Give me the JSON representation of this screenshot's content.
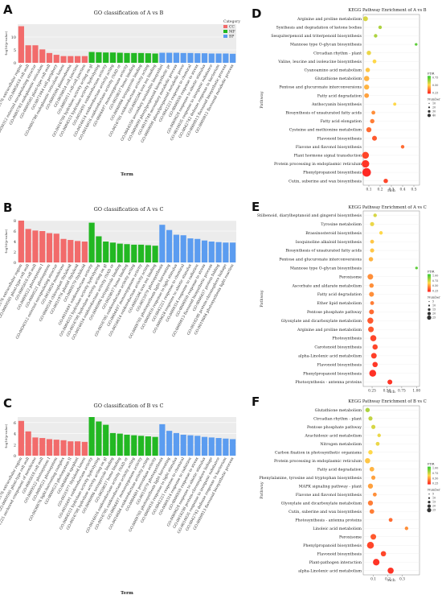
{
  "panels": {
    "A": {
      "letter": "A"
    },
    "B": {
      "letter": "B"
    },
    "C": {
      "letter": "C"
    },
    "D": {
      "letter": "D"
    },
    "E": {
      "letter": "E"
    },
    "F": {
      "letter": "F"
    }
  },
  "colors": {
    "CC": "#f26b6b",
    "MF": "#22b822",
    "BP": "#5b9cf0",
    "panel_bg": "#ececec",
    "kegg_low": "#ff2222",
    "kegg_mid": "#ffd84a",
    "kegg_high": "#33cc33"
  },
  "chart_data": [
    {
      "type": "bar",
      "panel": "A",
      "title": "GO classification of A vs B",
      "xlabel": "Term",
      "ylabel": "-log10(p-value)",
      "ylim": [
        0,
        15
      ],
      "yticks": [
        0,
        5,
        10
      ],
      "legend": {
        "title": "Category",
        "entries": [
          "CC",
          "MF",
          "BP"
        ],
        "placement": "top-right"
      },
      "categories": [
        "GO:0005576 extracellular region",
        "GO:0005618 cell wall",
        "GO:0030312 external encapsulating structure",
        "GO:0005783 endoplasmic reticulum",
        "GO:0009505 plant-type cell wall",
        "GO:0071944 cell periphery",
        "GO:0005788 endoplasmic reticulum lumen",
        "GO:0009506 plasmodesma",
        "GO:0030054 cell junction",
        "GO:0005911 cell-cell junction",
        "GO:0016798 hydrolase activity acting on glycosyl bonds",
        "GO:0004553 hydrolase activity hydrolyzing O-glycosyl compounds",
        "GO:0016491 oxidoreductase activity",
        "GO:0016614 oxidoreductase activity acting on CH-OH group of donors",
        "GO:0016616 oxidoreductase activity (NAD or NADP as acceptor)",
        "GO:0004497 monooxygenase activity",
        "GO:0020037 heme binding",
        "GO:0046906 tetrapyrrole binding",
        "GO:0016705 oxidoreductase activity acting on paired donors",
        "GO:0005506 iron ion binding",
        "GO:0044550 secondary metabolite biosynthetic process",
        "GO:0009699 phenylpropanoid biosynthetic process",
        "GO:0019748 secondary metabolic process",
        "GO:0009698 phenylpropanoid metabolic process",
        "GO:0042221 response to chemical",
        "GO:0006950 response to stress",
        "GO:0009628 response to abiotic stimulus",
        "GO:0010035 response to inorganic substance",
        "GO:0042742 defense response to bacterium",
        "GO:0009813 flavonoid biosynthetic process",
        "GO:0009812 flavonoid metabolic process"
      ],
      "values": [
        14.2,
        6.8,
        6.8,
        5.2,
        3.8,
        3.1,
        2.6,
        2.6,
        2.6,
        2.6,
        4.2,
        4.1,
        4.0,
        4.0,
        3.9,
        3.8,
        3.8,
        3.8,
        3.7,
        3.6,
        3.9,
        3.9,
        3.9,
        3.8,
        3.8,
        3.7,
        3.7,
        3.6,
        3.6,
        3.6,
        3.5
      ],
      "category_groups": [
        [
          "CC",
          10
        ],
        [
          "MF",
          10
        ],
        [
          "BP",
          11
        ]
      ]
    },
    {
      "type": "bar",
      "panel": "B",
      "title": "GO classification of A vs C",
      "xlabel": "",
      "ylabel": "-log10(p-value)",
      "ylim": [
        0,
        8
      ],
      "yticks": [
        0,
        2,
        4,
        6,
        8
      ],
      "categories": [
        "GO:0005576 extracellular region",
        "GO:0009505 plant-type cell wall",
        "GO:0005618 cell wall",
        "GO:0009522 photosystem I",
        "GO:0009521 photosystem",
        "GO:0030312 external encapsulating structure",
        "GO:0016020 membrane",
        "GO:0009534 chloroplast thylakoid",
        "GO:0031976 plastid thylakoid",
        "GO:0009579 thylakoid",
        "GO:0016491 oxidoreductase activity",
        "GO:0004553 hydrolase activity hydrolyzing O-glycosyl compounds",
        "GO:0016798 hydrolase activity acting on glycosyl bonds",
        "GO:0016616 oxidoreductase activity (NAD or NADP as acceptor)",
        "GO:0046906 tetrapyrrole binding",
        "GO:0020037 heme binding",
        "GO:0016705 oxidoreductase activity acting on paired donors",
        "GO:0004497 monooxygenase activity",
        "GO:0016614 oxidoreductase activity acting on CH-OH group",
        "GO:0005506 iron ion binding",
        "GO:0015979 photosynthesis",
        "GO:0009765 photosynthesis light harvesting",
        "GO:0009416 response to light stimulus",
        "GO:0042221 response to chemical",
        "GO:0009628 response to abiotic stimulus",
        "GO:0009314 response to radiation",
        "GO:0006950 response to stress",
        "GO:0009813 flavonoid biosynthetic process",
        "GO:0006457 protein folding",
        "GO:0018298 protein-chromophore linkage",
        "GO:0019684 photosynthesis light reaction"
      ],
      "values": [
        8.0,
        6.4,
        6.1,
        6.0,
        5.6,
        5.5,
        4.5,
        4.3,
        4.1,
        4.0,
        7.6,
        5.0,
        4.0,
        3.8,
        3.6,
        3.5,
        3.4,
        3.4,
        3.3,
        3.2,
        7.2,
        6.2,
        5.3,
        5.2,
        4.6,
        4.5,
        4.2,
        4.0,
        3.9,
        3.8,
        3.8
      ],
      "category_groups": [
        [
          "CC",
          10
        ],
        [
          "MF",
          10
        ],
        [
          "BP",
          11
        ]
      ]
    },
    {
      "type": "bar",
      "panel": "C",
      "title": "GO classification of B vs C",
      "xlabel": "Term",
      "ylabel": "-log10(p-value)",
      "ylim": [
        0,
        7
      ],
      "yticks": [
        0,
        2,
        4,
        6
      ],
      "categories": [
        "GO:0005576 extracellular region",
        "GO:0009505 plant-type cell wall",
        "GO:0031225 anchored component of membrane",
        "GO:0005618 cell wall",
        "GO:0009522 photosystem I",
        "GO:0009521 photosystem",
        "GO:0030076 light-harvesting complex",
        "GO:0009523 photosystem II",
        "GO:0048046 apoplast",
        "GO:0031977 thylakoid lumen",
        "GO:0016491 oxidoreductase activity",
        "GO:0004553 hydrolase activity hydrolyzing O-glycosyl compounds",
        "GO:0016798 hydrolase activity acting on glycosyl bonds",
        "GO:0046906 tetrapyrrole binding",
        "GO:0020037 heme binding",
        "GO:0016616 oxidoreductase activity (NAD or NADP as acceptor)",
        "GO:0016705 oxidoreductase activity acting on paired donors",
        "GO:0004497 monooxygenase activity",
        "GO:0016684 oxidoreductase activity acting on peroxide",
        "GO:0004601 peroxidase activity",
        "GO:0015979 photosynthesis",
        "GO:0009765 photosynthesis light harvesting",
        "GO:0009416 response to light stimulus",
        "GO:0042221 response to chemical",
        "GO:0009314 response to radiation",
        "GO:0006950 response to stress",
        "GO:0009628 response to abiotic stimulus",
        "GO:0018298 protein-chromophore linkage",
        "GO:0010035 response to inorganic substance",
        "GO:0042742 defense response to bacterium",
        "GO:0009813 flavonoid biosynthetic process"
      ],
      "values": [
        6.3,
        4.4,
        3.3,
        3.2,
        3.0,
        2.9,
        2.8,
        2.6,
        2.6,
        2.5,
        7.0,
        6.2,
        5.6,
        4.1,
        4.0,
        3.8,
        3.7,
        3.6,
        3.5,
        3.4,
        5.7,
        4.5,
        4.1,
        3.8,
        3.7,
        3.6,
        3.4,
        3.3,
        3.2,
        3.1,
        3.0
      ],
      "category_groups": [
        [
          "CC",
          10
        ],
        [
          "MF",
          10
        ],
        [
          "BP",
          11
        ]
      ]
    },
    {
      "type": "scatter",
      "panel": "D",
      "title": "KEGG Pathway Enrichment of A vs B",
      "xlabel": "rich",
      "ylabel": "Pathway",
      "xlim": [
        0.05,
        0.55
      ],
      "xticks": [
        0.1,
        0.2,
        0.3,
        0.4,
        0.5
      ],
      "legend_fdr": {
        "title": "FDR",
        "ticks": [
          "0.75",
          "0.50",
          "0.25"
        ]
      },
      "legend_number": {
        "title": "Number",
        "entries": [
          "10",
          "20",
          "30",
          "40"
        ]
      },
      "categories": [
        "Arginine and proline metabolism",
        "Synthesis and degradation of ketone bodies",
        "Sesquiterpenoid and triterpenoid biosynthesis",
        "Mannose type O-glycan biosynthesis",
        "Circadian rhythm - plant",
        "Valine, leucine and isoleucine biosynthesis",
        "Cyanoamino acid metabolism",
        "Glutathione metabolism",
        "Pentose and glucuronate interconversions",
        "Fatty acid degradation",
        "Anthocyanin biosynthesis",
        "Biosynthesis of unsaturated fatty acids",
        "Fatty acid elongation",
        "Cysteine and methionine metabolism",
        "Flavonoid biosynthesis",
        "Flavone and flavonol biosynthesis",
        "Plant hormone signal transduction",
        "Protein processing in endoplasmic reticulum",
        "Phenylpropanoid biosynthesis",
        "Cutin, suberine and wax biosynthesis"
      ],
      "x": [
        0.07,
        0.2,
        0.16,
        0.52,
        0.1,
        0.15,
        0.09,
        0.08,
        0.08,
        0.08,
        0.33,
        0.14,
        0.13,
        0.1,
        0.15,
        0.4,
        0.07,
        0.07,
        0.08,
        0.25
      ],
      "size": [
        8,
        3,
        3,
        1,
        6,
        4,
        6,
        10,
        9,
        7,
        2,
        4,
        6,
        9,
        8,
        3,
        20,
        25,
        35,
        6
      ],
      "fdr": [
        0.6,
        0.7,
        0.7,
        0.9,
        0.55,
        0.5,
        0.45,
        0.4,
        0.4,
        0.35,
        0.5,
        0.3,
        0.25,
        0.2,
        0.15,
        0.2,
        0.1,
        0.05,
        0.02,
        0.1
      ]
    },
    {
      "type": "scatter",
      "panel": "E",
      "title": "KEGG Pathway Enrichment of A vs C",
      "xlabel": "rich",
      "ylabel": "Pathway",
      "xlim": [
        0.1,
        1.05
      ],
      "xticks": [
        0.25,
        0.5,
        0.75,
        1.0
      ],
      "xtick_labels": [
        "0.25",
        "0.50",
        "0.75",
        "1.00"
      ],
      "legend_fdr": {
        "title": "FDR",
        "ticks": [
          "1.00",
          "0.75",
          "0.50",
          "0.25"
        ]
      },
      "legend_number": {
        "title": "Number",
        "entries": [
          "5",
          "10",
          "15",
          "20",
          "25"
        ]
      },
      "categories": [
        "Stilbenoid, diarylheptanoid and gingerol biosynthesis",
        "Tyrosine metabolism",
        "Brassinosteroid biosynthesis",
        "Isoquinoline alkaloid biosynthesis",
        "Biosynthesis of unsaturated fatty acids",
        "Pentose and glucuronate interconversions",
        "Mannose type O-glycan biosynthesis",
        "Peroxisome",
        "Ascorbate and aldarate metabolism",
        "Fatty acid degradation",
        "Ether lipid metabolism",
        "Pentose phosphate pathway",
        "Glyoxylate and dicarboxylate metabolism",
        "Arginine and proline metabolism",
        "Photosynthesis",
        "Carotenoid biosynthesis",
        "alpha-Linolenic acid metabolism",
        "Flavonoid biosynthesis",
        "Phenylpropanoid biosynthesis",
        "Photosynthesis - antenna proteins"
      ],
      "x": [
        0.3,
        0.25,
        0.4,
        0.25,
        0.25,
        0.23,
        1.0,
        0.22,
        0.24,
        0.24,
        0.25,
        0.24,
        0.22,
        0.23,
        0.27,
        0.3,
        0.28,
        0.3,
        0.26,
        0.55
      ],
      "size": [
        3,
        5,
        3,
        4,
        5,
        6,
        1,
        12,
        6,
        8,
        4,
        8,
        14,
        12,
        15,
        10,
        12,
        10,
        20,
        8
      ],
      "fdr": [
        0.6,
        0.55,
        0.5,
        0.45,
        0.45,
        0.4,
        0.9,
        0.3,
        0.3,
        0.3,
        0.25,
        0.2,
        0.15,
        0.15,
        0.1,
        0.1,
        0.08,
        0.06,
        0.04,
        0.05
      ]
    },
    {
      "type": "scatter",
      "panel": "F",
      "title": "KEGG Pathway Enrichment of B vs C",
      "xlabel": "rich",
      "ylabel": "Pathway",
      "xlim": [
        0.03,
        0.42
      ],
      "xticks": [
        0.1,
        0.2,
        0.3
      ],
      "legend_fdr": {
        "title": "FDR",
        "ticks": [
          "1.00",
          "0.75",
          "0.50",
          "0.25"
        ]
      },
      "legend_number": {
        "title": "Number",
        "entries": [
          "5",
          "10",
          "15",
          "20",
          "25"
        ]
      },
      "categories": [
        "Glutathione metabolism",
        "Circadian rhythm - plant",
        "Pentose phosphate pathway",
        "Arachidonic acid metabolism",
        "Nitrogen metabolism",
        "Carbon fixation in photosynthetic organisms",
        "Protein processing in endoplasmic reticulum",
        "Fatty acid degradation",
        "Phenylalanine, tyrosine and tryptophan biosynthesis",
        "MAPK signaling pathway - plant",
        "Flavone and flavonol biosynthesis",
        "Glyoxylate and dicarboxylate metabolism",
        "Cutin, suberine and wax biosynthesis",
        "Photosynthesis - antenna proteins",
        "Linoleic acid metabolism",
        "Peroxisome",
        "Phenylpropanoid biosynthesis",
        "Flavonoid biosynthesis",
        "Plant-pathogen interaction",
        "alpha-Linolenic acid metabolism"
      ],
      "x": [
        0.06,
        0.08,
        0.1,
        0.14,
        0.13,
        0.08,
        0.06,
        0.09,
        0.1,
        0.08,
        0.11,
        0.08,
        0.09,
        0.22,
        0.33,
        0.1,
        0.08,
        0.17,
        0.12,
        0.22
      ],
      "size": [
        6,
        5,
        5,
        3,
        4,
        6,
        10,
        7,
        5,
        9,
        4,
        9,
        7,
        4,
        3,
        12,
        20,
        10,
        18,
        15
      ],
      "fdr": [
        0.7,
        0.65,
        0.6,
        0.55,
        0.55,
        0.5,
        0.45,
        0.4,
        0.35,
        0.35,
        0.3,
        0.25,
        0.25,
        0.2,
        0.3,
        0.15,
        0.1,
        0.1,
        0.05,
        0.05
      ]
    }
  ]
}
